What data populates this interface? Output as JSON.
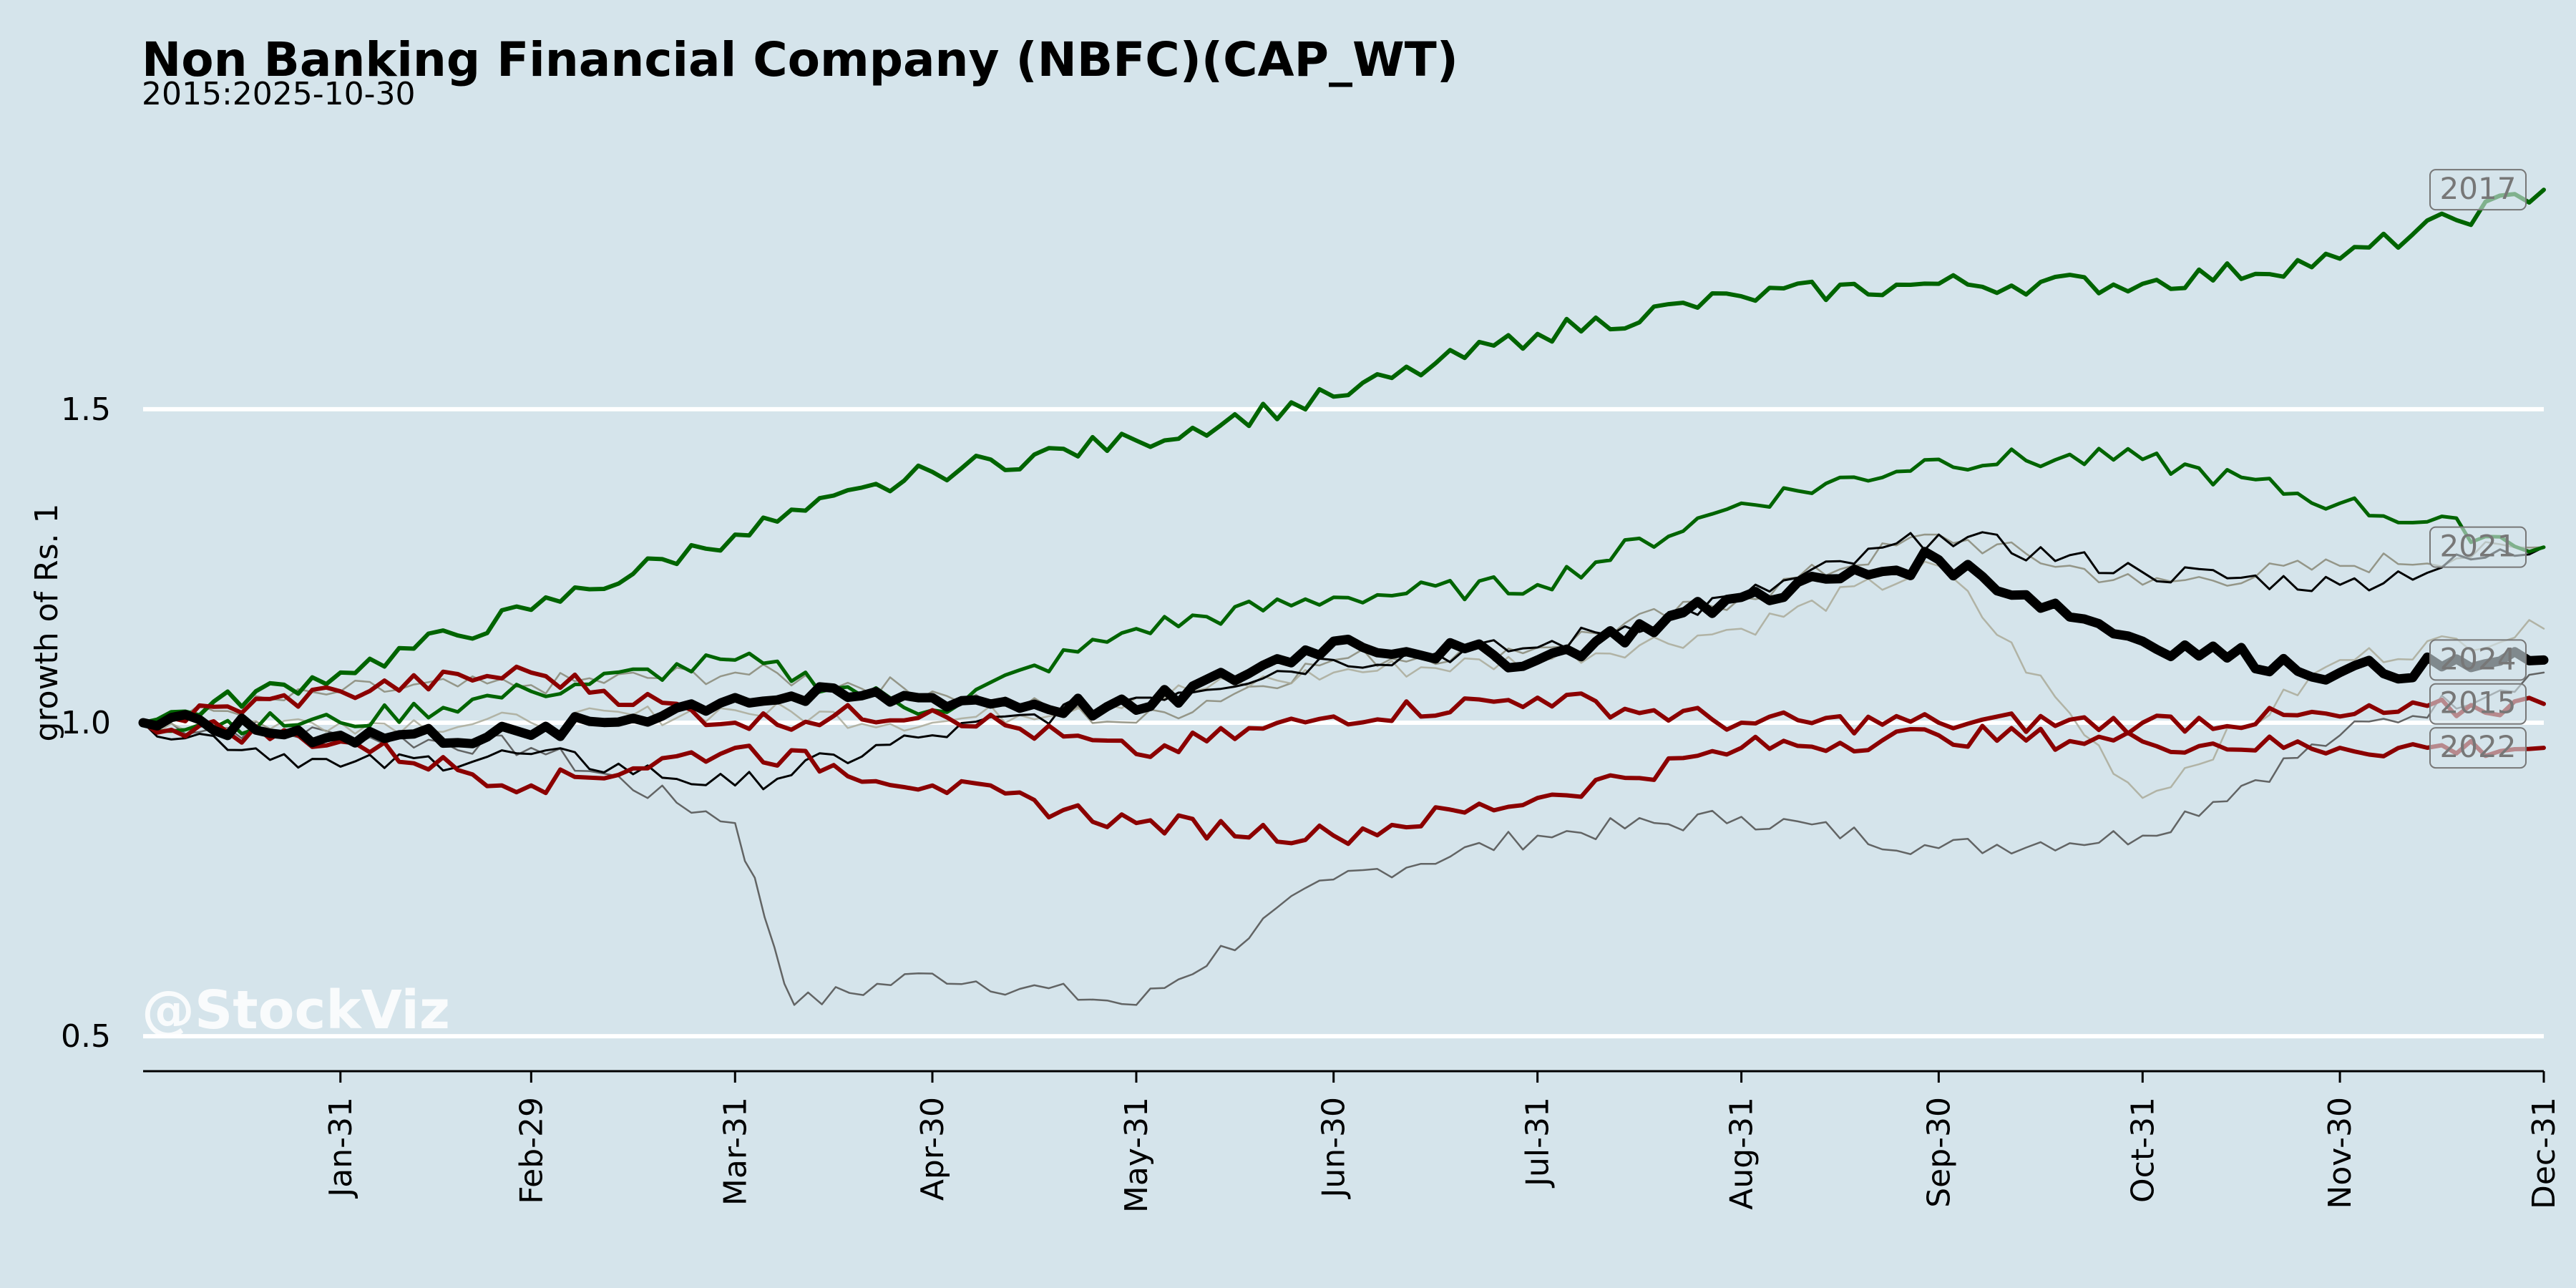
{
  "chart_data": {
    "type": "line",
    "title": "Non Banking Financial Company (NBFC)(CAP_WT)",
    "subtitle": "2015:2025-10-30",
    "ylabel": "growth of Rs. 1",
    "xlabel": "",
    "watermark": "@StockViz",
    "ylim": [
      0.45,
      1.97
    ],
    "yticks": [
      0.5,
      1.0,
      1.5
    ],
    "ytick_labels": [
      "0.5",
      "1.0",
      "1.5"
    ],
    "xlim": [
      1,
      366
    ],
    "xticks": [
      31,
      60,
      91,
      121,
      152,
      182,
      213,
      244,
      274,
      305,
      335,
      366
    ],
    "xtick_labels": [
      "Jan-31",
      "Feb-29",
      "Mar-31",
      "Apr-30",
      "May-31",
      "Jun-30",
      "Jul-31",
      "Aug-31",
      "Sep-30",
      "Oct-31",
      "Nov-30",
      "Dec-31"
    ],
    "grid": "y",
    "colors": {
      "background": "#d5e4eb",
      "gridline": "#ffffff",
      "gain": "#006400",
      "loss": "#8b0000",
      "current": "#000000",
      "neutral": "#777777"
    },
    "series": [
      {
        "name": "2017",
        "color": "#006400",
        "width": 6,
        "opacity": 1,
        "x": [
          1,
          31,
          60,
          91,
          121,
          152,
          182,
          213,
          244,
          274,
          305,
          335,
          366
        ],
        "y": [
          1.0,
          1.08,
          1.18,
          1.3,
          1.4,
          1.45,
          1.52,
          1.62,
          1.68,
          1.7,
          1.7,
          1.74,
          1.85
        ]
      },
      {
        "name": "2021",
        "color": "#006400",
        "width": 5,
        "opacity": 1,
        "x": [
          1,
          31,
          60,
          91,
          121,
          152,
          182,
          213,
          244,
          274,
          305,
          335,
          366
        ],
        "y": [
          1.0,
          1.0,
          1.05,
          1.1,
          1.02,
          1.15,
          1.2,
          1.22,
          1.35,
          1.42,
          1.42,
          1.35,
          1.28
        ]
      },
      {
        "name": "2024",
        "color": "#000000",
        "width": 13,
        "opacity": 1,
        "x": [
          1,
          31,
          60,
          91,
          121,
          152,
          182,
          213,
          244,
          274,
          305,
          335,
          366
        ],
        "y": [
          1.0,
          0.98,
          0.98,
          1.04,
          1.04,
          1.02,
          1.13,
          1.1,
          1.2,
          1.26,
          1.13,
          1.08,
          1.1
        ]
      },
      {
        "name": "2015",
        "color": "#8b0000",
        "width": 6,
        "opacity": 1,
        "x": [
          1,
          31,
          60,
          91,
          121,
          152,
          182,
          213,
          244,
          274,
          305,
          335,
          366
        ],
        "y": [
          1.0,
          1.05,
          1.08,
          1.0,
          1.02,
          0.95,
          1.01,
          1.04,
          1.0,
          1.0,
          1.0,
          1.01,
          1.03
        ]
      },
      {
        "name": "2022",
        "color": "#8b0000",
        "width": 6,
        "opacity": 1,
        "x": [
          1,
          31,
          60,
          91,
          121,
          152,
          182,
          213,
          244,
          274,
          305,
          335,
          366
        ],
        "y": [
          1.0,
          0.97,
          0.9,
          0.96,
          0.9,
          0.84,
          0.82,
          0.88,
          0.96,
          0.98,
          0.97,
          0.96,
          0.96
        ]
      },
      {
        "name": "",
        "color": "#000000",
        "width": 3,
        "opacity": 1,
        "x": [
          1,
          31,
          60,
          91,
          121,
          152,
          182,
          213,
          244,
          274,
          305,
          335,
          366
        ],
        "y": [
          1.0,
          0.93,
          0.95,
          0.9,
          0.98,
          1.04,
          1.1,
          1.12,
          1.2,
          1.3,
          1.24,
          1.22,
          1.28
        ]
      },
      {
        "name": "",
        "color": "#555555",
        "width": 2.5,
        "opacity": 0.9,
        "x": [
          1,
          31,
          60,
          91,
          100,
          121,
          152,
          182,
          213,
          244,
          274,
          305,
          335,
          366
        ],
        "y": [
          1.0,
          0.98,
          0.96,
          0.84,
          0.55,
          0.6,
          0.55,
          0.75,
          0.82,
          0.85,
          0.8,
          0.82,
          0.98,
          1.08
        ]
      },
      {
        "name": "",
        "color": "#888877",
        "width": 2.5,
        "opacity": 0.85,
        "x": [
          1,
          31,
          60,
          91,
          121,
          152,
          182,
          213,
          244,
          274,
          305,
          335,
          366
        ],
        "y": [
          1.0,
          1.05,
          1.06,
          1.08,
          1.05,
          1.0,
          1.1,
          1.12,
          1.2,
          1.3,
          1.22,
          1.25,
          1.28
        ]
      },
      {
        "name": "",
        "color": "#aaaa99",
        "width": 2.5,
        "opacity": 0.85,
        "x": [
          1,
          31,
          60,
          91,
          121,
          152,
          182,
          213,
          244,
          274,
          305,
          335,
          366
        ],
        "y": [
          1.0,
          1.0,
          1.0,
          1.02,
          1.0,
          1.04,
          1.08,
          1.1,
          1.15,
          1.25,
          0.88,
          1.1,
          1.15
        ]
      }
    ]
  }
}
